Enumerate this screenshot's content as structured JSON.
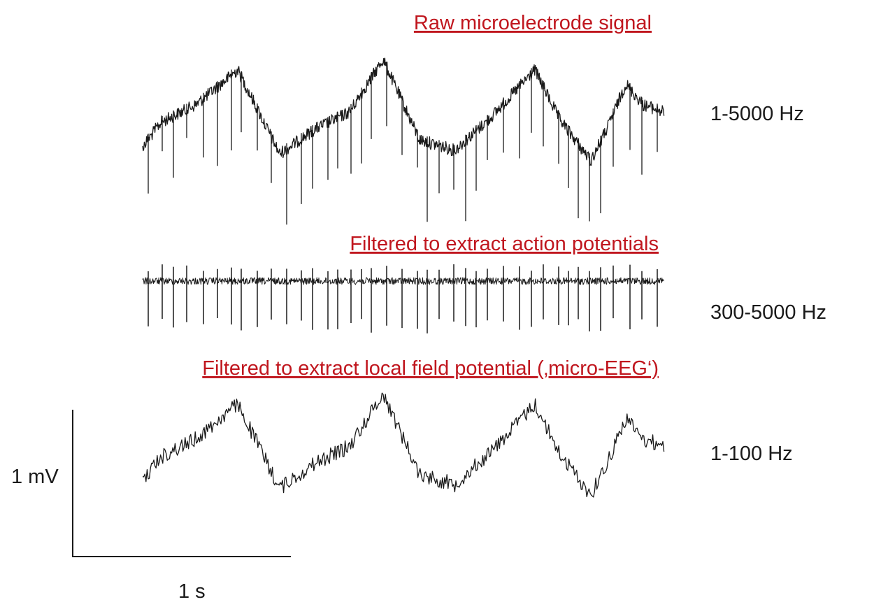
{
  "traces": [
    {
      "title": "Raw microelectrode signal",
      "band": "1-5000 Hz"
    },
    {
      "title": "Filtered to extract action potentials",
      "band": "300-5000 Hz"
    },
    {
      "title": "Filtered to extract local field potential (‚micro-EEG‘)",
      "band": "1-100 Hz"
    }
  ],
  "scale_bar": {
    "voltage_label": "1 mV",
    "time_label": "1 s"
  }
}
